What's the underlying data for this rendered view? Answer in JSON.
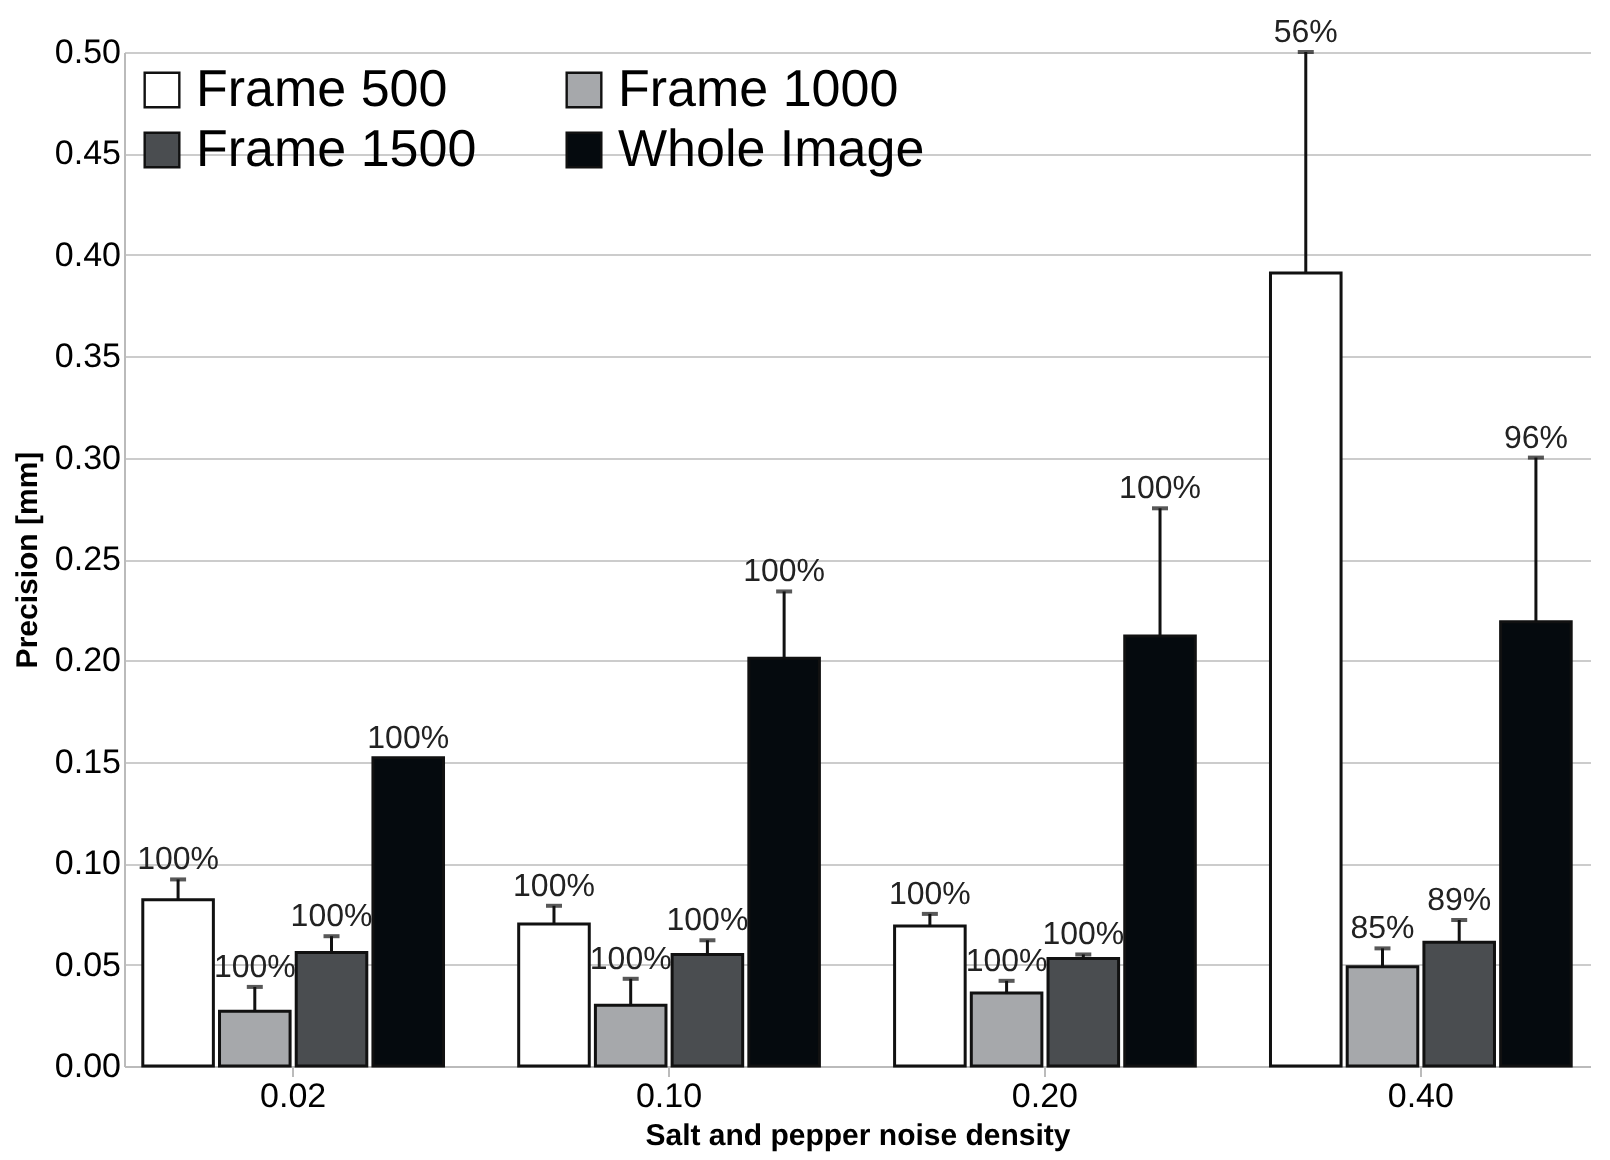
{
  "chart_data": {
    "type": "bar",
    "xlabel": "Salt and pepper noise density",
    "ylabel": "Precision [mm]",
    "categories": [
      "0.02",
      "0.10",
      "0.20",
      "0.40"
    ],
    "series": [
      {
        "name": "Frame 500",
        "color": "#ffffff",
        "values": [
          0.082,
          0.07,
          0.069,
          0.391
        ],
        "errors": [
          0.01,
          0.009,
          0.006,
          0.109
        ]
      },
      {
        "name": "Frame 1000",
        "color": "#a6a8ab",
        "values": [
          0.027,
          0.03,
          0.036,
          0.049
        ],
        "errors": [
          0.012,
          0.013,
          0.006,
          0.009
        ]
      },
      {
        "name": "Frame 1500",
        "color": "#4a4d50",
        "values": [
          0.056,
          0.055,
          0.053,
          0.061
        ],
        "errors": [
          0.008,
          0.007,
          0.002,
          0.011
        ]
      },
      {
        "name": "Whole Image",
        "color": "#050a0e",
        "values": [
          0.152,
          0.201,
          0.212,
          0.219
        ],
        "errors": [
          null,
          0.033,
          0.063,
          0.081
        ]
      }
    ],
    "annotations": [
      "100%",
      "100%",
      "100%",
      "56%",
      "100%",
      "100%",
      "100%",
      "85%",
      "100%",
      "100%",
      "100%",
      "89%",
      "100%",
      "100%",
      "100%",
      "96%"
    ],
    "ylim": [
      0,
      0.5
    ],
    "yticks": [
      {
        "value": 0,
        "label": "0.00"
      },
      {
        "value": 0.05,
        "label": "0.05"
      },
      {
        "value": 0.1,
        "label": "0.10"
      },
      {
        "value": 0.15,
        "label": "0.15"
      },
      {
        "value": 0.2,
        "label": "0.20"
      },
      {
        "value": 0.25,
        "label": "0.25"
      },
      {
        "value": 0.3,
        "label": "0.30"
      },
      {
        "value": 0.35,
        "label": "0.35"
      },
      {
        "value": 0.4,
        "label": "0.40"
      },
      {
        "value": 0.45,
        "label": "0.45"
      },
      {
        "value": 0.5,
        "label": "0.50"
      }
    ],
    "grid": "y",
    "legend": "top left"
  }
}
